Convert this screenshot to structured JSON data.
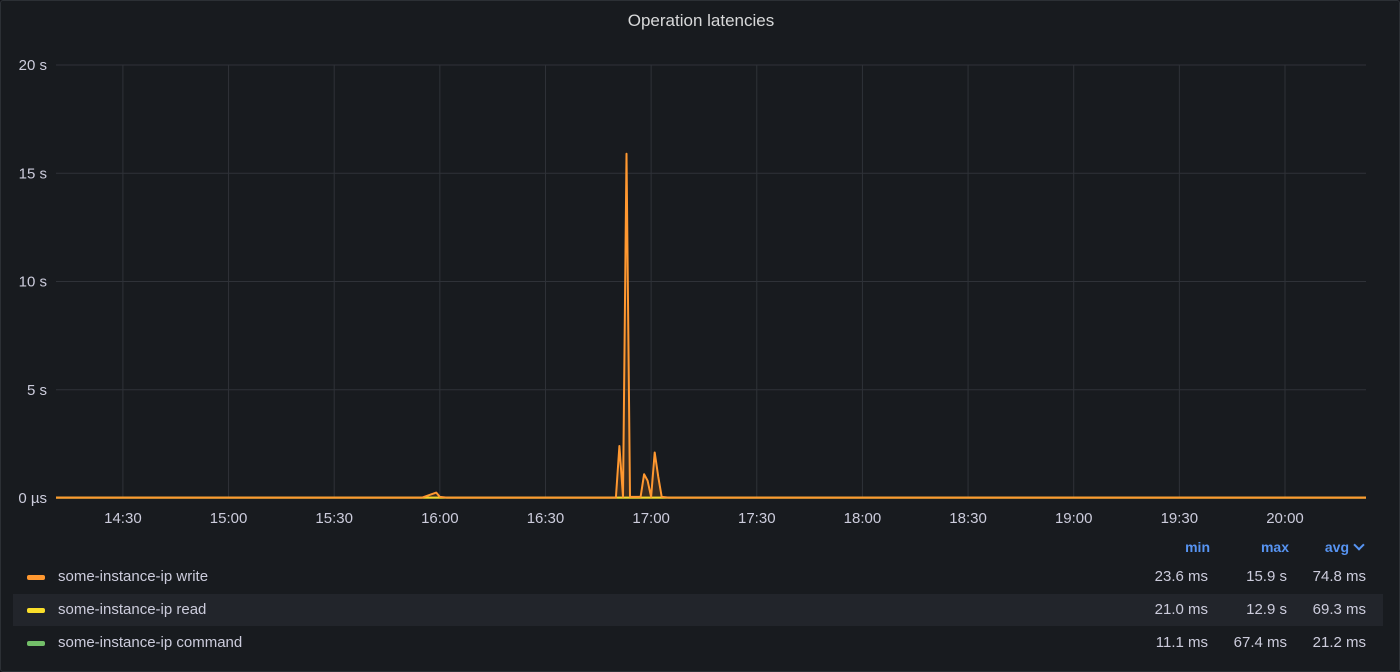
{
  "panel": {
    "title": "Operation latencies"
  },
  "chart_data": {
    "type": "line",
    "title": "Operation latencies",
    "xlabel": "",
    "ylabel": "",
    "y_unit": "s",
    "ylim": [
      0,
      20
    ],
    "y_ticks": [
      {
        "value": 0,
        "label": "0 µs"
      },
      {
        "value": 5,
        "label": "5 s"
      },
      {
        "value": 10,
        "label": "10 s"
      },
      {
        "value": 15,
        "label": "15 s"
      },
      {
        "value": 20,
        "label": "20 s"
      }
    ],
    "xlim": [
      "14:11",
      "20:23"
    ],
    "x_ticks": [
      "14:30",
      "15:00",
      "15:30",
      "16:00",
      "16:30",
      "17:00",
      "17:30",
      "18:00",
      "18:30",
      "19:00",
      "19:30",
      "20:00"
    ],
    "grid": true,
    "legend_position": "bottom",
    "series": [
      {
        "name": "some-instance-ip write",
        "color": "#ff9830",
        "points": [
          [
            "14:11",
            0.02
          ],
          [
            "15:55",
            0.02
          ],
          [
            "15:59",
            0.25
          ],
          [
            "16:00",
            0.05
          ],
          [
            "16:02",
            0.02
          ],
          [
            "16:50",
            0.02
          ],
          [
            "16:51",
            2.4
          ],
          [
            "16:52",
            0.05
          ],
          [
            "16:52",
            0.05
          ],
          [
            "16:53",
            15.9
          ],
          [
            "16:54",
            0.05
          ],
          [
            "16:57",
            0.05
          ],
          [
            "16:58",
            1.1
          ],
          [
            "16:59",
            0.8
          ],
          [
            "17:00",
            0.05
          ],
          [
            "17:00",
            0.05
          ],
          [
            "17:01",
            2.1
          ],
          [
            "17:02",
            1.0
          ],
          [
            "17:03",
            0.05
          ],
          [
            "17:05",
            0.02
          ],
          [
            "20:23",
            0.02
          ]
        ]
      },
      {
        "name": "some-instance-ip read",
        "color": "#fade2a",
        "points": [
          [
            "14:11",
            0.02
          ],
          [
            "20:23",
            0.02
          ]
        ]
      },
      {
        "name": "some-instance-ip command",
        "color": "#73bf69",
        "points": [
          [
            "14:11",
            0.02
          ],
          [
            "20:23",
            0.02
          ]
        ]
      }
    ]
  },
  "legend": {
    "headers": {
      "min": "min",
      "max": "max",
      "avg": "avg"
    },
    "rows": [
      {
        "name": "some-instance-ip write",
        "color": "#ff9830",
        "min": "23.6 ms",
        "max": "15.9 s",
        "avg": "74.8 ms"
      },
      {
        "name": "some-instance-ip read",
        "color": "#fade2a",
        "min": "21.0 ms",
        "max": "12.9 s",
        "avg": "69.3 ms"
      },
      {
        "name": "some-instance-ip command",
        "color": "#73bf69",
        "min": "11.1 ms",
        "max": "67.4 ms",
        "avg": "21.2 ms"
      }
    ]
  }
}
